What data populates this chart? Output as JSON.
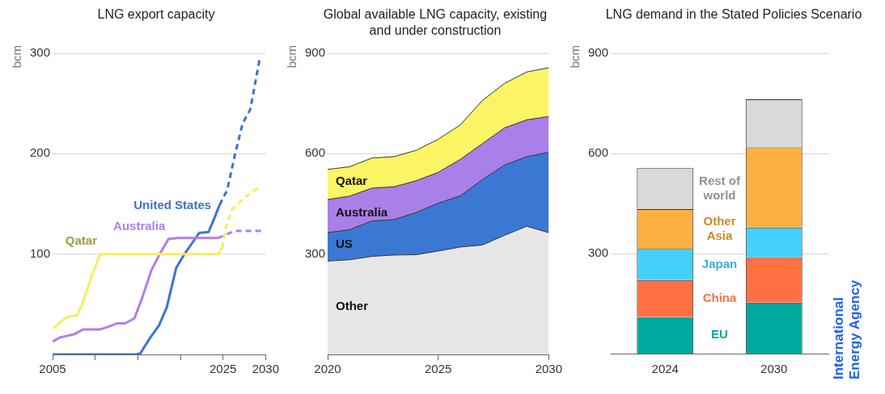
{
  "chart_data": [
    {
      "type": "line",
      "title": "LNG export capacity",
      "ylabel": "bcm",
      "xlim": [
        2005,
        2030
      ],
      "xticks": [
        2005,
        {
          "value": 2010,
          "label": null
        },
        {
          "value": 2015,
          "label": null
        },
        {
          "value": 2020,
          "label": null
        },
        2025,
        2030
      ],
      "ylim": [
        0,
        300
      ],
      "yticks": [
        100,
        200,
        300
      ],
      "grid": "y",
      "series": [
        {
          "name": "Qatar",
          "color": "#f5ef5c",
          "x": [
            2005,
            2006.6,
            2007.9,
            2008.6,
            2009.7,
            2010.6,
            2024.4,
            2024.9
          ],
          "values": [
            26,
            37,
            39,
            53,
            81,
            100,
            100,
            106
          ]
        },
        {
          "color": "#f5ef5c",
          "line_style": "dashed",
          "x": [
            2024.9,
            2025.3,
            2026,
            2027.1,
            2028.2,
            2029.4
          ],
          "values": [
            106,
            125,
            144,
            153,
            161,
            167
          ]
        },
        {
          "name": "Australia",
          "color": "#b07ee8",
          "x": [
            2005,
            2005.9,
            2007.5,
            2008.6,
            2010.6,
            2011.7,
            2012.6,
            2013.5,
            2014.6,
            2015.5,
            2016.6,
            2017.5,
            2018.6,
            2019.7,
            2024.4
          ],
          "values": [
            13,
            17,
            20,
            25,
            25,
            28,
            31,
            31,
            36,
            56,
            84,
            99,
            115,
            116,
            116
          ]
        },
        {
          "color": "#b07ee8",
          "line_style": "dashed",
          "x": [
            2024.4,
            2025.5,
            2026.4,
            2029.5
          ],
          "values": [
            116,
            120,
            123,
            123
          ]
        },
        {
          "name": "United States",
          "color": "#3d74d1",
          "x": [
            2005,
            2014.8,
            2015.3,
            2016.4,
            2017.5,
            2018.4,
            2019.5,
            2020.4,
            2021.3,
            2022.2,
            2023.3,
            2024,
            2024.6
          ],
          "values": [
            0,
            0,
            1,
            16,
            29,
            47,
            86,
            99,
            110,
            121,
            122,
            136,
            149
          ]
        },
        {
          "color": "#3d74d1",
          "line_style": "dashed",
          "x": [
            2024.6,
            2025.5,
            2026.4,
            2027.3,
            2028.2,
            2028.9,
            2029.3
          ],
          "values": [
            149,
            164,
            199,
            230,
            244,
            276,
            294
          ]
        }
      ]
    },
    {
      "type": "area",
      "title": "Global available LNG capacity, existing and under construction",
      "ylabel": "bcm",
      "stacked": true,
      "x": [
        2020,
        2021,
        2022,
        2023,
        2024,
        2025,
        2026,
        2027,
        2028,
        2029,
        2030
      ],
      "xlim": [
        2020,
        2030
      ],
      "xticks": [
        2020,
        2025,
        2030
      ],
      "ylim": [
        0,
        900
      ],
      "yticks": [
        300,
        600,
        900
      ],
      "grid": "y",
      "series": [
        {
          "name": "Other",
          "color": "#e6e6e6",
          "values": [
            279,
            283,
            293,
            297,
            298,
            309,
            321,
            327,
            356,
            383,
            364
          ]
        },
        {
          "name": "US",
          "color": "#3a78d4",
          "values": [
            85,
            90,
            106,
            106,
            126,
            143,
            153,
            196,
            210,
            208,
            240
          ]
        },
        {
          "name": "Australia",
          "color": "#a97fe8",
          "values": [
            99,
            100,
            98,
            98,
            95,
            92,
            109,
            107,
            111,
            110,
            107
          ]
        },
        {
          "name": "Qatar",
          "color": "#fbf464",
          "values": [
            90,
            88,
            90,
            90,
            91,
            99,
            103,
            129,
            133,
            143,
            146
          ]
        }
      ]
    },
    {
      "type": "bar",
      "title": "LNG demand in the Stated Policies Scenario",
      "ylabel": "bcm",
      "stacked": true,
      "categories": [
        "2024",
        "2030"
      ],
      "ylim": [
        0,
        900
      ],
      "yticks": [
        300,
        600,
        900
      ],
      "grid": "y",
      "annotations": [
        "International Energy Agency"
      ],
      "series": [
        {
          "name": "EU",
          "color": "#00a99d",
          "values": [
            110,
            153
          ]
        },
        {
          "name": "China",
          "color": "#ff7043",
          "values": [
            111,
            136
          ]
        },
        {
          "name": "Japan",
          "color": "#45d0fa",
          "values": [
            93,
            89
          ]
        },
        {
          "name": "Other Asia",
          "color": "#fbb040",
          "values": [
            119,
            240
          ]
        },
        {
          "name": "Rest of world",
          "color": "#d9d9d9",
          "values": [
            123,
            144
          ]
        }
      ]
    }
  ]
}
